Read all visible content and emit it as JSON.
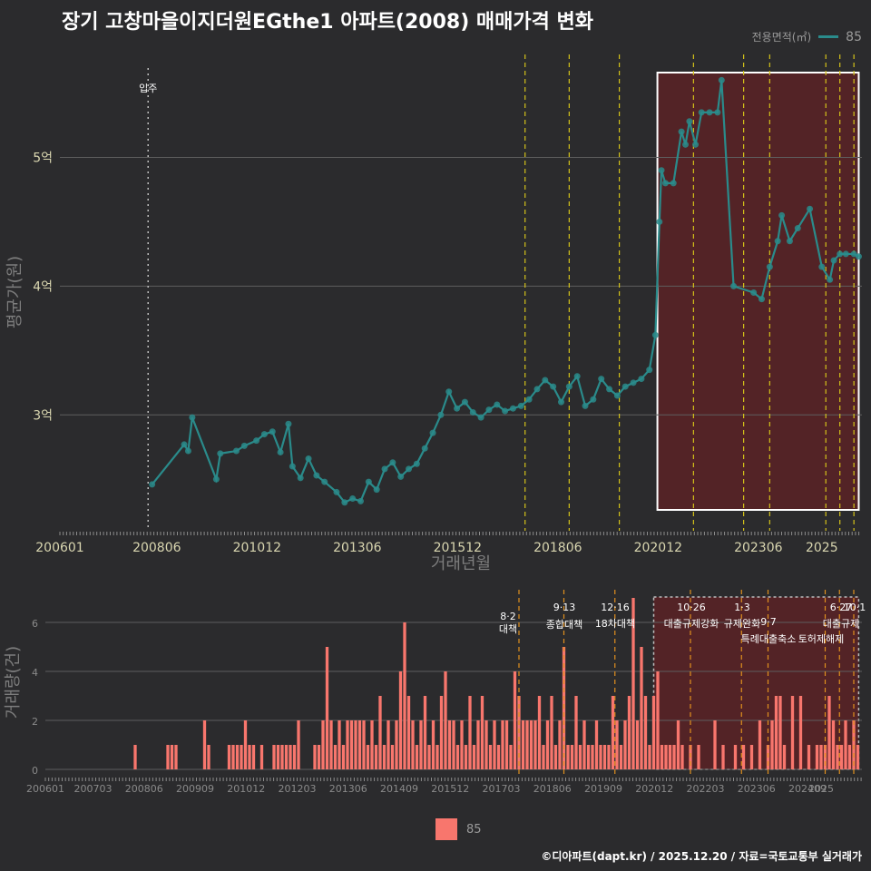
{
  "title": "장기 고창마을이지더원EGthe1 아파트(2008) 매매가격 변화",
  "footer": "©디아파트(dapt.kr) / 2025.12.20 / 자료=국토교통부 실거래가",
  "colors": {
    "line": "#2a8b8b",
    "bar": "#f8766d",
    "policy": "#d4c21a",
    "policy_bottom": "#e0901e",
    "highlight": "#5a2226"
  },
  "legend": {
    "title": "전용면적(㎡)",
    "series": [
      "85"
    ]
  },
  "chart_data": [
    {
      "type": "line",
      "title": "장기 고창마을이지더원EGthe1 아파트(2008) 매매가격 변화",
      "xlabel": "거래년월",
      "ylabel": "평균가(원)",
      "x_ticks": [
        "200601",
        "200806",
        "201012",
        "201306",
        "201512",
        "201806",
        "202012",
        "202306",
        "2025"
      ],
      "y_ticks": [
        "3억",
        "4억",
        "5억"
      ],
      "xlim": [
        2006.0,
        2026.0
      ],
      "ylim": [
        2.1,
        5.8
      ],
      "move_in": {
        "label": "입주",
        "x": 2008.2
      },
      "policy_lines": [
        2017.6,
        2018.7,
        2019.95,
        2021.8,
        2023.05,
        2023.7,
        2025.1,
        2025.45,
        2025.8
      ],
      "highlight_range": [
        2020.9,
        2025.92
      ],
      "series": [
        {
          "name": "85",
          "points": [
            [
              2008.3,
              2.46
            ],
            [
              2009.1,
              2.77
            ],
            [
              2009.2,
              2.72
            ],
            [
              2009.3,
              2.98
            ],
            [
              2009.9,
              2.5
            ],
            [
              2010.0,
              2.7
            ],
            [
              2010.4,
              2.72
            ],
            [
              2010.6,
              2.76
            ],
            [
              2010.9,
              2.8
            ],
            [
              2011.1,
              2.85
            ],
            [
              2011.3,
              2.87
            ],
            [
              2011.5,
              2.71
            ],
            [
              2011.7,
              2.93
            ],
            [
              2011.8,
              2.6
            ],
            [
              2012.0,
              2.51
            ],
            [
              2012.2,
              2.66
            ],
            [
              2012.4,
              2.53
            ],
            [
              2012.6,
              2.48
            ],
            [
              2012.9,
              2.4
            ],
            [
              2013.1,
              2.32
            ],
            [
              2013.3,
              2.35
            ],
            [
              2013.5,
              2.33
            ],
            [
              2013.7,
              2.48
            ],
            [
              2013.9,
              2.42
            ],
            [
              2014.1,
              2.58
            ],
            [
              2014.3,
              2.63
            ],
            [
              2014.5,
              2.52
            ],
            [
              2014.7,
              2.58
            ],
            [
              2014.9,
              2.62
            ],
            [
              2015.1,
              2.74
            ],
            [
              2015.3,
              2.86
            ],
            [
              2015.5,
              3.0
            ],
            [
              2015.7,
              3.18
            ],
            [
              2015.9,
              3.05
            ],
            [
              2016.1,
              3.1
            ],
            [
              2016.3,
              3.02
            ],
            [
              2016.5,
              2.98
            ],
            [
              2016.7,
              3.04
            ],
            [
              2016.9,
              3.08
            ],
            [
              2017.1,
              3.03
            ],
            [
              2017.3,
              3.05
            ],
            [
              2017.5,
              3.07
            ],
            [
              2017.7,
              3.12
            ],
            [
              2017.9,
              3.2
            ],
            [
              2018.1,
              3.27
            ],
            [
              2018.3,
              3.22
            ],
            [
              2018.5,
              3.1
            ],
            [
              2018.7,
              3.22
            ],
            [
              2018.9,
              3.3
            ],
            [
              2019.1,
              3.07
            ],
            [
              2019.3,
              3.12
            ],
            [
              2019.5,
              3.28
            ],
            [
              2019.7,
              3.2
            ],
            [
              2019.9,
              3.15
            ],
            [
              2020.1,
              3.22
            ],
            [
              2020.3,
              3.25
            ],
            [
              2020.5,
              3.28
            ],
            [
              2020.7,
              3.35
            ],
            [
              2020.85,
              3.62
            ],
            [
              2020.95,
              4.5
            ],
            [
              2021.0,
              4.9
            ],
            [
              2021.1,
              4.8
            ],
            [
              2021.3,
              4.8
            ],
            [
              2021.5,
              5.2
            ],
            [
              2021.6,
              5.1
            ],
            [
              2021.7,
              5.28
            ],
            [
              2021.85,
              5.1
            ],
            [
              2022.0,
              5.35
            ],
            [
              2022.2,
              5.35
            ],
            [
              2022.4,
              5.35
            ],
            [
              2022.5,
              5.6
            ],
            [
              2022.8,
              4.0
            ],
            [
              2023.3,
              3.95
            ],
            [
              2023.5,
              3.9
            ],
            [
              2023.7,
              4.15
            ],
            [
              2023.9,
              4.35
            ],
            [
              2024.0,
              4.55
            ],
            [
              2024.2,
              4.35
            ],
            [
              2024.4,
              4.45
            ],
            [
              2024.7,
              4.6
            ],
            [
              2025.0,
              4.15
            ],
            [
              2025.2,
              4.05
            ],
            [
              2025.3,
              4.2
            ],
            [
              2025.45,
              4.25
            ],
            [
              2025.6,
              4.25
            ],
            [
              2025.8,
              4.25
            ],
            [
              2025.92,
              4.23
            ]
          ]
        }
      ]
    },
    {
      "type": "bar",
      "ylabel": "거래량(건)",
      "x_ticks": [
        "200601",
        "200703",
        "200806",
        "200909",
        "201012",
        "201203",
        "201306",
        "201409",
        "201512",
        "201703",
        "201806",
        "201909",
        "202012",
        "202203",
        "202306",
        "202409",
        "2025"
      ],
      "y_ticks": [
        "0",
        "2",
        "4",
        "6"
      ],
      "ylim": [
        0,
        7
      ],
      "policy_lines": [
        2017.6,
        2018.7,
        2019.95,
        2021.8,
        2023.05,
        2023.7,
        2025.1,
        2025.45,
        2025.8
      ],
      "highlight_range": [
        2020.9,
        2025.92
      ],
      "annotations": [
        {
          "date": "8·2",
          "label": "대책"
        },
        {
          "date": "9·13",
          "label": "종합대책"
        },
        {
          "date": "12·16",
          "label": "18차대책"
        },
        {
          "date": "10·26",
          "label": "대출규제강화"
        },
        {
          "date": "1·3",
          "label": "규제완화"
        },
        {
          "date": "9·7",
          "label": "특례대출축소"
        },
        {
          "date": "",
          "label": "토허제해제"
        },
        {
          "date": "6·27",
          "label": "대출규제"
        },
        {
          "date": "10·1",
          "label": ""
        }
      ],
      "series": [
        {
          "name": "85",
          "bars": [
            [
              2008.2,
              1
            ],
            [
              2009.0,
              1
            ],
            [
              2009.1,
              1
            ],
            [
              2009.2,
              1
            ],
            [
              2009.9,
              2
            ],
            [
              2010.0,
              1
            ],
            [
              2010.5,
              1
            ],
            [
              2010.6,
              1
            ],
            [
              2010.7,
              1
            ],
            [
              2010.8,
              1
            ],
            [
              2010.9,
              2
            ],
            [
              2011.0,
              1
            ],
            [
              2011.1,
              1
            ],
            [
              2011.3,
              1
            ],
            [
              2011.6,
              1
            ],
            [
              2011.7,
              1
            ],
            [
              2011.8,
              1
            ],
            [
              2011.9,
              1
            ],
            [
              2012.0,
              1
            ],
            [
              2012.1,
              1
            ],
            [
              2012.2,
              2
            ],
            [
              2012.6,
              1
            ],
            [
              2012.7,
              1
            ],
            [
              2012.8,
              2
            ],
            [
              2012.9,
              5
            ],
            [
              2013.0,
              2
            ],
            [
              2013.1,
              1
            ],
            [
              2013.2,
              2
            ],
            [
              2013.3,
              1
            ],
            [
              2013.4,
              2
            ],
            [
              2013.5,
              2
            ],
            [
              2013.6,
              2
            ],
            [
              2013.7,
              2
            ],
            [
              2013.8,
              2
            ],
            [
              2013.9,
              1
            ],
            [
              2014.0,
              2
            ],
            [
              2014.1,
              1
            ],
            [
              2014.2,
              3
            ],
            [
              2014.3,
              1
            ],
            [
              2014.4,
              2
            ],
            [
              2014.5,
              1
            ],
            [
              2014.6,
              2
            ],
            [
              2014.7,
              4
            ],
            [
              2014.8,
              6
            ],
            [
              2014.9,
              3
            ],
            [
              2015.0,
              2
            ],
            [
              2015.1,
              1
            ],
            [
              2015.2,
              2
            ],
            [
              2015.3,
              3
            ],
            [
              2015.4,
              1
            ],
            [
              2015.5,
              2
            ],
            [
              2015.6,
              1
            ],
            [
              2015.7,
              3
            ],
            [
              2015.8,
              4
            ],
            [
              2015.9,
              2
            ],
            [
              2016.0,
              2
            ],
            [
              2016.1,
              1
            ],
            [
              2016.2,
              2
            ],
            [
              2016.3,
              1
            ],
            [
              2016.4,
              3
            ],
            [
              2016.5,
              1
            ],
            [
              2016.6,
              2
            ],
            [
              2016.7,
              3
            ],
            [
              2016.8,
              2
            ],
            [
              2016.9,
              1
            ],
            [
              2017.0,
              2
            ],
            [
              2017.1,
              1
            ],
            [
              2017.2,
              2
            ],
            [
              2017.3,
              2
            ],
            [
              2017.4,
              1
            ],
            [
              2017.5,
              4
            ],
            [
              2017.6,
              3
            ],
            [
              2017.7,
              2
            ],
            [
              2017.8,
              2
            ],
            [
              2017.9,
              2
            ],
            [
              2018.0,
              2
            ],
            [
              2018.1,
              3
            ],
            [
              2018.2,
              1
            ],
            [
              2018.3,
              2
            ],
            [
              2018.4,
              3
            ],
            [
              2018.5,
              1
            ],
            [
              2018.6,
              2
            ],
            [
              2018.7,
              5
            ],
            [
              2018.8,
              1
            ],
            [
              2018.9,
              1
            ],
            [
              2019.0,
              3
            ],
            [
              2019.1,
              1
            ],
            [
              2019.2,
              2
            ],
            [
              2019.3,
              1
            ],
            [
              2019.4,
              1
            ],
            [
              2019.5,
              2
            ],
            [
              2019.6,
              1
            ],
            [
              2019.7,
              1
            ],
            [
              2019.8,
              1
            ],
            [
              2019.9,
              3
            ],
            [
              2020.0,
              2
            ],
            [
              2020.1,
              1
            ],
            [
              2020.2,
              2
            ],
            [
              2020.3,
              3
            ],
            [
              2020.4,
              7
            ],
            [
              2020.5,
              2
            ],
            [
              2020.6,
              5
            ],
            [
              2020.7,
              3
            ],
            [
              2020.8,
              1
            ],
            [
              2020.9,
              3
            ],
            [
              2021.0,
              4
            ],
            [
              2021.1,
              1
            ],
            [
              2021.2,
              1
            ],
            [
              2021.3,
              1
            ],
            [
              2021.4,
              1
            ],
            [
              2021.5,
              2
            ],
            [
              2021.6,
              1
            ],
            [
              2021.8,
              1
            ],
            [
              2022.0,
              1
            ],
            [
              2022.4,
              2
            ],
            [
              2022.6,
              1
            ],
            [
              2022.9,
              1
            ],
            [
              2023.1,
              1
            ],
            [
              2023.3,
              1
            ],
            [
              2023.5,
              2
            ],
            [
              2023.7,
              1
            ],
            [
              2023.8,
              2
            ],
            [
              2023.9,
              3
            ],
            [
              2024.0,
              3
            ],
            [
              2024.1,
              1
            ],
            [
              2024.3,
              3
            ],
            [
              2024.5,
              3
            ],
            [
              2024.7,
              1
            ],
            [
              2024.9,
              1
            ],
            [
              2025.0,
              1
            ],
            [
              2025.1,
              1
            ],
            [
              2025.2,
              3
            ],
            [
              2025.3,
              2
            ],
            [
              2025.4,
              1
            ],
            [
              2025.5,
              1
            ],
            [
              2025.6,
              2
            ],
            [
              2025.7,
              1
            ],
            [
              2025.8,
              2
            ],
            [
              2025.9,
              1
            ]
          ]
        }
      ]
    }
  ]
}
